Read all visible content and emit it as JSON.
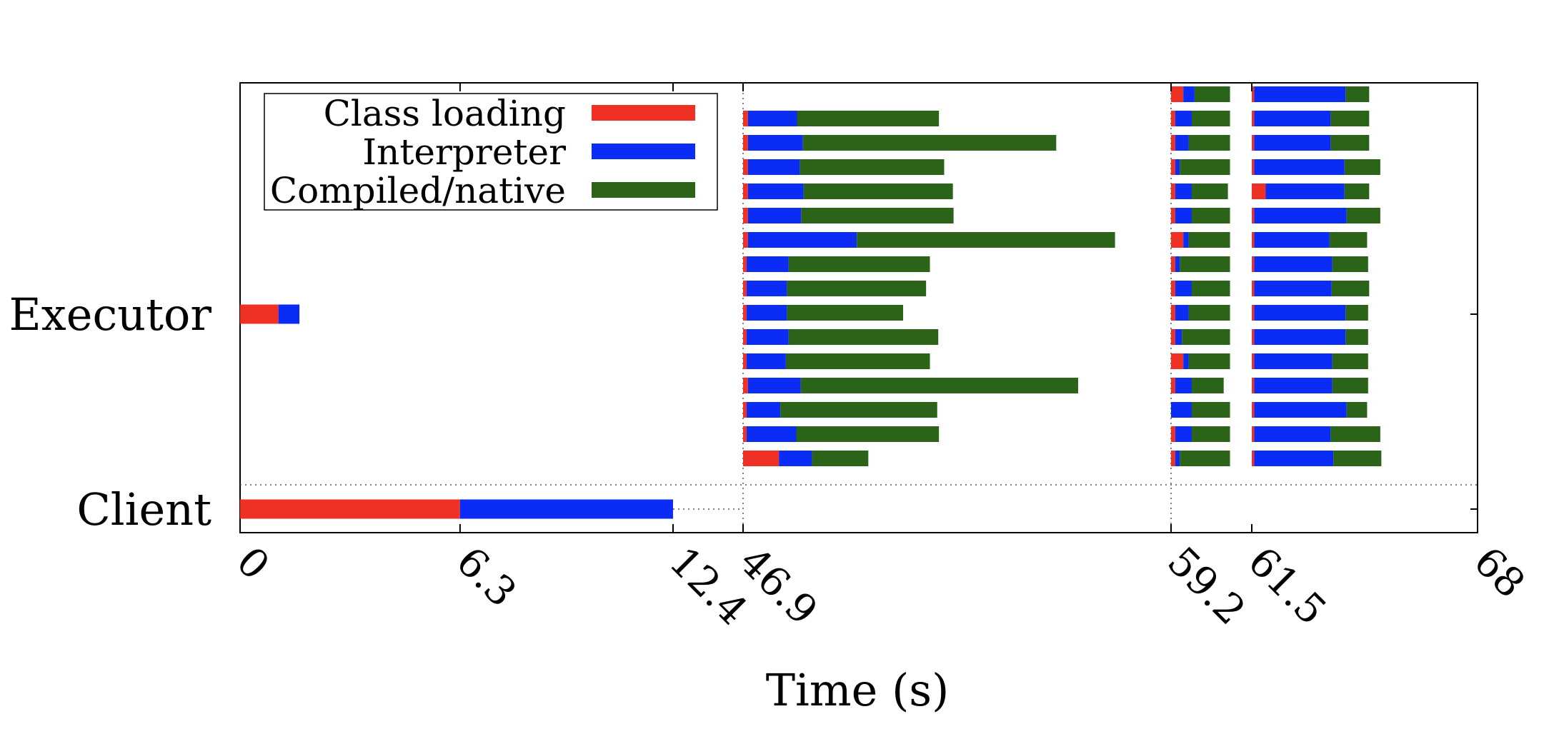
{
  "chart_data": {
    "type": "bar",
    "orientation": "horizontal-stacked-timeline",
    "title": "",
    "xlabel": "Time (s)",
    "ylabel": "",
    "xlim": [
      0,
      68
    ],
    "x_ticks": [
      0,
      6.3,
      12.4,
      46.9,
      59.2,
      61.5,
      68
    ],
    "x_tick_labels": [
      "0",
      "6.3",
      "12.4",
      "46.9",
      "59.2",
      "61.5",
      "68"
    ],
    "x_axis_breaks": [
      12.4,
      46.9
    ],
    "y_categories": [
      "Executor",
      "Client"
    ],
    "legend": {
      "placement": "top-left",
      "entries": [
        {
          "name": "Class loading",
          "color": "#ee3124"
        },
        {
          "name": "Interpreter",
          "color": "#0a2cf5"
        },
        {
          "name": "Compiled/native",
          "color": "#2b6418"
        }
      ]
    },
    "colors": {
      "class_loading": "#ee3124",
      "interpreter": "#0a2cf5",
      "compiled": "#2b6418"
    },
    "client": {
      "segments": [
        {
          "series": "class_loading",
          "start": 0,
          "end": 6.3
        },
        {
          "series": "interpreter",
          "start": 6.3,
          "end": 12.4
        }
      ],
      "idle_until": 46.9
    },
    "executor_startup": {
      "segments": [
        {
          "series": "class_loading",
          "start": 0,
          "end": 1.1
        },
        {
          "series": "interpreter",
          "start": 1.1,
          "end": 1.7
        }
      ]
    },
    "executor_tasks": [
      {
        "group": 1,
        "rows": [
          [
            46.9,
            47.04,
            48.45,
            52.53
          ],
          [
            46.9,
            47.04,
            48.62,
            55.9
          ],
          [
            46.9,
            47.04,
            48.53,
            52.68
          ],
          [
            46.9,
            47.04,
            48.64,
            52.93
          ],
          [
            46.9,
            47.04,
            48.57,
            52.95
          ],
          [
            46.9,
            47.04,
            50.17,
            57.59
          ],
          [
            46.9,
            47.0,
            48.21,
            52.27
          ],
          [
            46.9,
            47.0,
            48.16,
            52.16
          ],
          [
            46.9,
            47.0,
            48.16,
            51.5
          ],
          [
            46.9,
            47.0,
            48.21,
            52.51
          ],
          [
            46.9,
            47.0,
            48.13,
            52.27
          ],
          [
            46.9,
            47.04,
            48.56,
            56.53
          ],
          [
            46.9,
            47.0,
            47.97,
            52.48
          ],
          [
            46.9,
            47.0,
            48.43,
            52.53
          ],
          [
            46.9,
            47.93,
            48.88,
            50.5
          ]
        ]
      },
      {
        "group": 2,
        "rows": [
          [
            59.2,
            59.55,
            59.87,
            60.88
          ],
          [
            59.2,
            59.32,
            59.79,
            60.88
          ],
          [
            59.2,
            59.32,
            59.7,
            60.88
          ],
          [
            59.2,
            59.32,
            59.45,
            60.88
          ],
          [
            59.2,
            59.32,
            59.79,
            60.82
          ],
          [
            59.2,
            59.32,
            59.79,
            60.88
          ],
          [
            59.2,
            59.55,
            59.7,
            60.88
          ],
          [
            59.2,
            59.32,
            59.45,
            60.88
          ],
          [
            59.2,
            59.32,
            59.79,
            60.88
          ],
          [
            59.2,
            59.32,
            59.7,
            60.88
          ],
          [
            59.2,
            59.32,
            59.51,
            60.88
          ],
          [
            59.2,
            59.55,
            59.7,
            60.88
          ],
          [
            59.2,
            59.32,
            59.79,
            60.7
          ],
          [
            59.2,
            59.2,
            59.79,
            60.88
          ],
          [
            59.2,
            59.32,
            59.79,
            60.88
          ],
          [
            59.2,
            59.32,
            59.45,
            60.88
          ]
        ]
      },
      {
        "group": 3,
        "rows": [
          [
            61.5,
            61.57,
            64.2,
            64.88
          ],
          [
            61.5,
            61.57,
            63.77,
            64.88
          ],
          [
            61.5,
            61.57,
            63.77,
            64.88
          ],
          [
            61.5,
            61.57,
            64.17,
            65.2
          ],
          [
            61.5,
            61.9,
            64.17,
            64.88
          ],
          [
            61.5,
            61.57,
            64.23,
            65.2
          ],
          [
            61.5,
            61.57,
            63.74,
            64.82
          ],
          [
            61.5,
            61.57,
            63.82,
            64.85
          ],
          [
            61.5,
            61.57,
            63.8,
            64.88
          ],
          [
            61.5,
            61.57,
            64.2,
            64.85
          ],
          [
            61.5,
            61.57,
            64.2,
            64.85
          ],
          [
            61.5,
            61.57,
            63.82,
            64.85
          ],
          [
            61.5,
            61.57,
            63.82,
            64.85
          ],
          [
            61.5,
            61.57,
            64.23,
            64.82
          ],
          [
            61.5,
            61.57,
            63.77,
            65.2
          ],
          [
            61.5,
            61.57,
            63.85,
            65.23
          ]
        ]
      }
    ]
  }
}
